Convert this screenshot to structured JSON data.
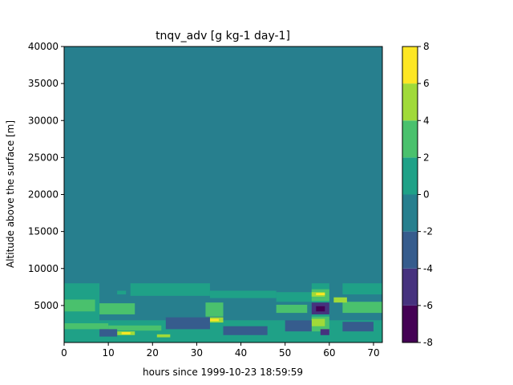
{
  "chart_data": {
    "type": "heatmap",
    "subtype": "filled-contour",
    "title": "tnqv_adv [g kg-1 day-1]",
    "xlabel": "hours since 1999-10-23 18:59:59",
    "ylabel": "Altitude above the surface [m]",
    "xlim": [
      0,
      72
    ],
    "ylim": [
      0,
      40000
    ],
    "xticks": [
      "0",
      "10",
      "20",
      "30",
      "40",
      "50",
      "60",
      "70"
    ],
    "yticks": [
      "5000",
      "10000",
      "15000",
      "20000",
      "25000",
      "30000",
      "35000",
      "40000"
    ],
    "background_level": "-2 to 0",
    "levels": [
      -8,
      -6,
      -4,
      -2,
      0,
      2,
      4,
      6,
      8
    ],
    "level_colors": [
      "#440154",
      "#46327e",
      "#365c8d",
      "#277f8e",
      "#1fa187",
      "#4ac16d",
      "#a0da39",
      "#fde725"
    ],
    "colorbar_ticks": [
      "-8",
      "-6",
      "-4",
      "-2",
      "0",
      "2",
      "4",
      "6",
      "8"
    ],
    "regions": [
      {
        "level": "0 to 2",
        "x": [
          0,
          8
        ],
        "y": [
          0,
          8000
        ]
      },
      {
        "level": "0 to 2",
        "x": [
          12,
          14
        ],
        "y": [
          6500,
          7000
        ]
      },
      {
        "level": "0 to 2",
        "x": [
          15,
          33
        ],
        "y": [
          6300,
          8000
        ]
      },
      {
        "level": "0 to 2",
        "x": [
          33,
          48
        ],
        "y": [
          6000,
          7000
        ]
      },
      {
        "level": "0 to 2",
        "x": [
          48,
          56
        ],
        "y": [
          5500,
          6800
        ]
      },
      {
        "level": "0 to 2",
        "x": [
          56,
          60
        ],
        "y": [
          0,
          8000
        ]
      },
      {
        "level": "0 to 2",
        "x": [
          63,
          72
        ],
        "y": [
          6500,
          8000
        ]
      },
      {
        "level": "0 to 2",
        "x": [
          0,
          72
        ],
        "y": [
          0,
          3000
        ]
      },
      {
        "level": "2 to 4",
        "x": [
          0,
          7
        ],
        "y": [
          4200,
          5800
        ]
      },
      {
        "level": "2 to 4",
        "x": [
          8,
          16
        ],
        "y": [
          3800,
          5300
        ]
      },
      {
        "level": "2 to 4",
        "x": [
          32,
          36
        ],
        "y": [
          3500,
          5400
        ]
      },
      {
        "level": "2 to 4",
        "x": [
          48,
          55
        ],
        "y": [
          4000,
          5100
        ]
      },
      {
        "level": "2 to 4",
        "x": [
          56,
          60
        ],
        "y": [
          5600,
          7200
        ]
      },
      {
        "level": "2 to 4",
        "x": [
          63,
          72
        ],
        "y": [
          4000,
          5500
        ]
      },
      {
        "level": "2 to 4",
        "x": [
          56,
          60
        ],
        "y": [
          1500,
          3500
        ]
      },
      {
        "level": "2 to 4",
        "x": [
          0,
          10
        ],
        "y": [
          1800,
          2600
        ]
      },
      {
        "level": "2 to 4",
        "x": [
          10,
          22
        ],
        "y": [
          1600,
          2300
        ]
      },
      {
        "level": "4 to 6",
        "x": [
          56,
          59
        ],
        "y": [
          2200,
          3200
        ]
      },
      {
        "level": "4 to 6",
        "x": [
          56,
          59
        ],
        "y": [
          6200,
          6800
        ]
      },
      {
        "level": "4 to 6",
        "x": [
          61,
          64
        ],
        "y": [
          5400,
          6100
        ]
      },
      {
        "level": "4 to 6",
        "x": [
          32,
          36
        ],
        "y": [
          2700,
          3400
        ]
      },
      {
        "level": "4 to 6",
        "x": [
          12,
          16
        ],
        "y": [
          1000,
          1500
        ]
      },
      {
        "level": "4 to 6",
        "x": [
          21,
          24
        ],
        "y": [
          700,
          1100
        ]
      },
      {
        "level": "6 to 8",
        "x": [
          13,
          15
        ],
        "y": [
          1100,
          1400
        ]
      },
      {
        "level": "6 to 8",
        "x": [
          33,
          35
        ],
        "y": [
          2900,
          3200
        ]
      },
      {
        "level": "6 to 8",
        "x": [
          57,
          59
        ],
        "y": [
          6400,
          6700
        ]
      },
      {
        "level": "-4 to -2",
        "x": [
          23,
          33
        ],
        "y": [
          1800,
          3400
        ]
      },
      {
        "level": "-4 to -2",
        "x": [
          8,
          12
        ],
        "y": [
          800,
          1800
        ]
      },
      {
        "level": "-4 to -2",
        "x": [
          63,
          70
        ],
        "y": [
          1500,
          2800
        ]
      },
      {
        "level": "-4 to -2",
        "x": [
          36,
          46
        ],
        "y": [
          1000,
          2200
        ]
      },
      {
        "level": "-4 to -2",
        "x": [
          50,
          56
        ],
        "y": [
          1500,
          3000
        ]
      },
      {
        "level": "-6 to -4",
        "x": [
          56,
          60
        ],
        "y": [
          3800,
          5400
        ]
      },
      {
        "level": "-6 to -4",
        "x": [
          58,
          60
        ],
        "y": [
          1000,
          1800
        ]
      },
      {
        "level": "-8 to -6",
        "x": [
          57,
          59
        ],
        "y": [
          4200,
          4900
        ]
      }
    ]
  }
}
